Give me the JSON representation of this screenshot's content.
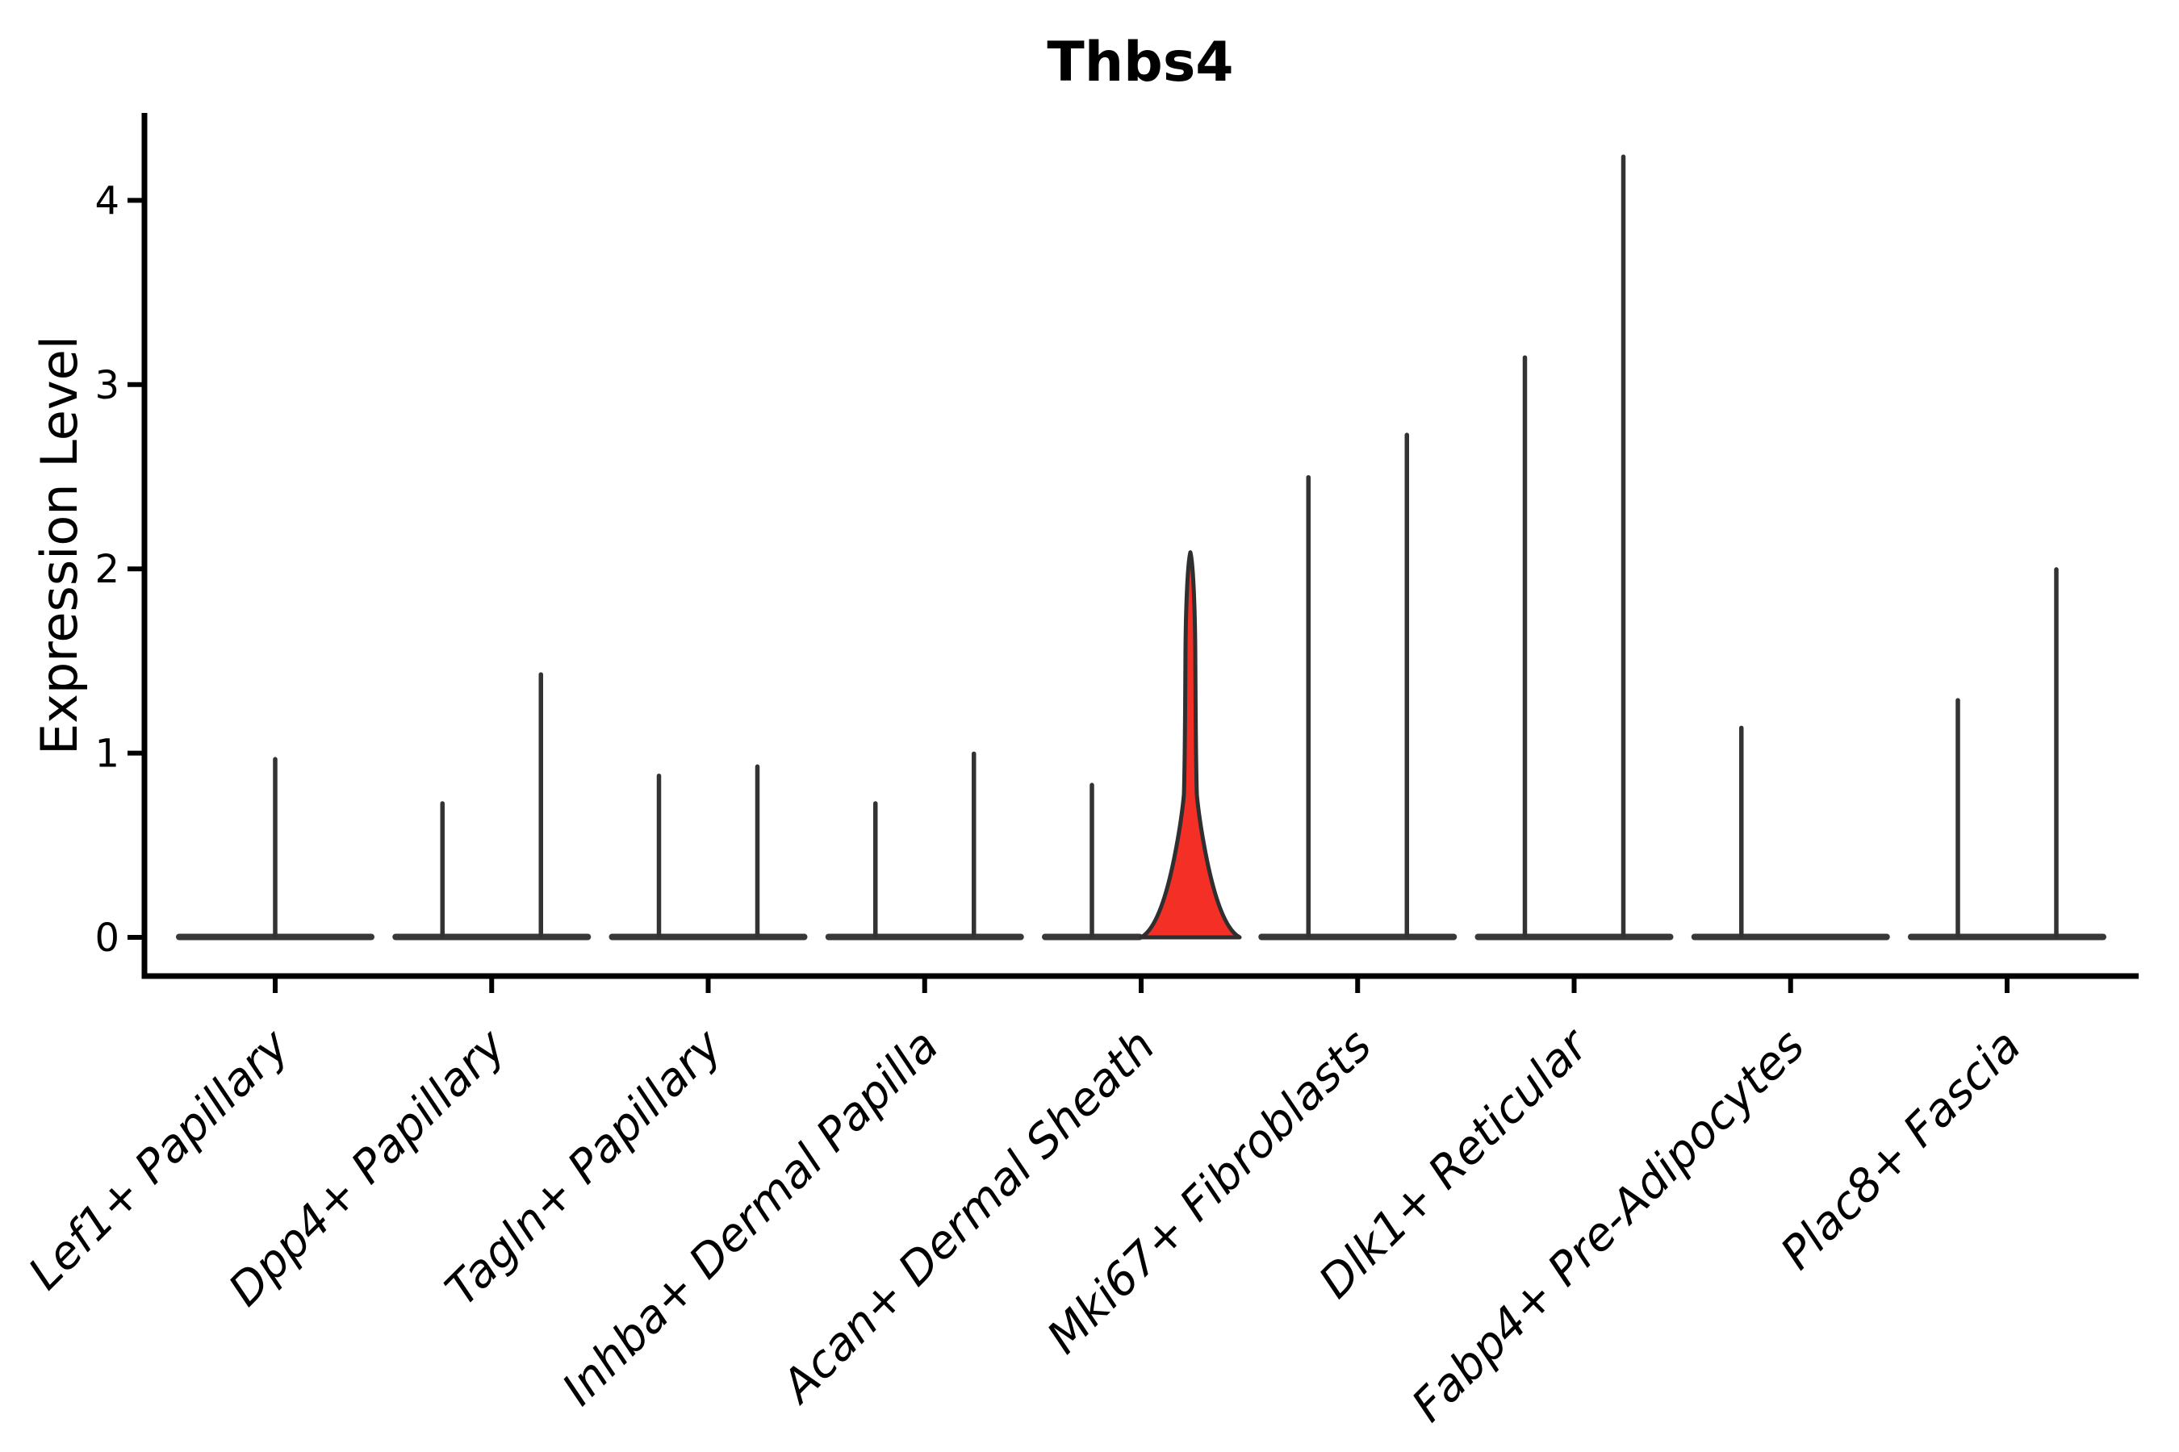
{
  "chart_data": {
    "type": "violin",
    "title": "Thbs4",
    "ylabel": "Expression Level",
    "xlabel": "",
    "yticks": [
      "0",
      "1",
      "2",
      "3",
      "4"
    ],
    "ylim": [
      -0.22,
      4.47
    ],
    "grid": false,
    "legend": "none",
    "categories": [
      "Lef1+ Papillary",
      "Dpp4+ Papillary",
      "Tagln+ Papillary",
      "Inhba+ Dermal Papilla",
      "Acan+ Dermal Sheath",
      "Mki67+ Fibroblasts",
      "Dlk1+ Reticular",
      "Fabp4+ Pre-Adipocytes",
      "Plac8+ Fascia"
    ],
    "violins": [
      {
        "category": "Lef1+ Papillary",
        "slot": "center",
        "max_expression": 0.98,
        "filled": false
      },
      {
        "category": "Dpp4+ Papillary",
        "slot": "left",
        "max_expression": 0.74,
        "filled": false
      },
      {
        "category": "Dpp4+ Papillary",
        "slot": "right",
        "max_expression": 1.44,
        "filled": false
      },
      {
        "category": "Tagln+ Papillary",
        "slot": "left",
        "max_expression": 0.89,
        "filled": false
      },
      {
        "category": "Tagln+ Papillary",
        "slot": "right",
        "max_expression": 0.94,
        "filled": false
      },
      {
        "category": "Inhba+ Dermal Papilla",
        "slot": "left",
        "max_expression": 0.74,
        "filled": false
      },
      {
        "category": "Inhba+ Dermal Papilla",
        "slot": "right",
        "max_expression": 1.01,
        "filled": false
      },
      {
        "category": "Acan+ Dermal Sheath",
        "slot": "left",
        "max_expression": 0.84,
        "filled": false
      },
      {
        "category": "Acan+ Dermal Sheath",
        "slot": "right",
        "max_expression": 2.09,
        "filled": true
      },
      {
        "category": "Mki67+ Fibroblasts",
        "slot": "left",
        "max_expression": 2.51,
        "filled": false
      },
      {
        "category": "Mki67+ Fibroblasts",
        "slot": "right",
        "max_expression": 2.74,
        "filled": false
      },
      {
        "category": "Dlk1+ Reticular",
        "slot": "left",
        "max_expression": 3.16,
        "filled": false
      },
      {
        "category": "Dlk1+ Reticular",
        "slot": "right",
        "max_expression": 4.25,
        "filled": false
      },
      {
        "category": "Fabp4+ Pre-Adipocytes",
        "slot": "left",
        "max_expression": 1.15,
        "filled": false
      },
      {
        "category": "Fabp4+ Pre-Adipocytes",
        "slot": "right",
        "max_expression": 0.0,
        "filled": false
      },
      {
        "category": "Plac8+ Fascia",
        "slot": "left",
        "max_expression": 1.3,
        "filled": false
      },
      {
        "category": "Plac8+ Fascia",
        "slot": "right",
        "max_expression": 2.01,
        "filled": false
      }
    ],
    "highlighted_category": "Acan+ Dermal Sheath",
    "colors": {
      "highlight_fill": "#f43026",
      "violin_ink": "#333333",
      "baseline_ink": "#383838",
      "axis_ink": "#000000",
      "background": "#ffffff"
    }
  }
}
